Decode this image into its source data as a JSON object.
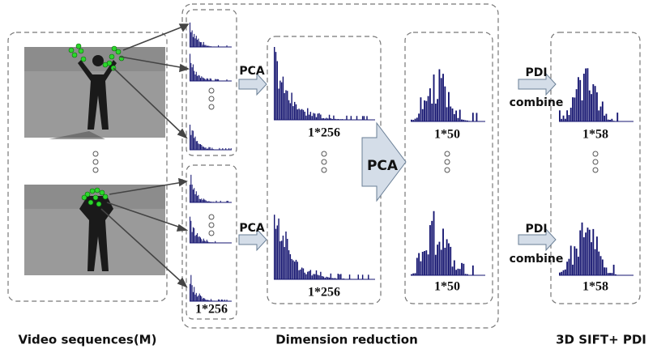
{
  "captions": {
    "video": "Video sequences(M)",
    "reduction": "Dimension reduction",
    "output": "3D SIFT+ PDI"
  },
  "pca_arrows": [
    "PCA",
    "PCA",
    "PCA"
  ],
  "pdi_arrows": [
    {
      "top": "PDI",
      "bottom": "combine"
    },
    {
      "top": "PDI",
      "bottom": "combine"
    }
  ],
  "dims": {
    "frame": "1*256",
    "pooled": [
      "1*256",
      "1*256"
    ],
    "reduced": [
      "1*50",
      "1*50"
    ],
    "combined": [
      "1*58",
      "1*58"
    ]
  }
}
